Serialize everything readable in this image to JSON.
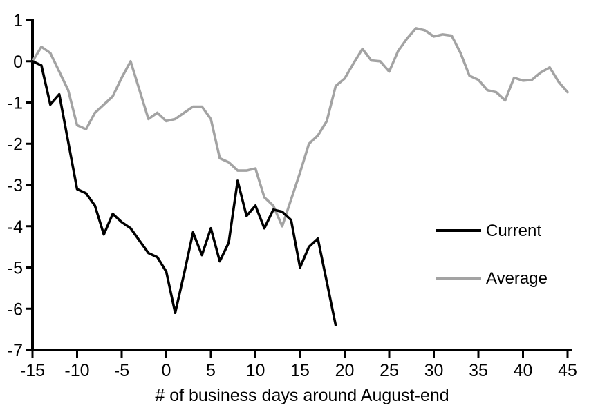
{
  "chart_data": {
    "type": "line",
    "title": "",
    "xlabel": "# of business days around August-end",
    "ylabel": "",
    "xlim": [
      -15,
      45
    ],
    "ylim": [
      -7,
      1
    ],
    "x_ticks": [
      -15,
      -10,
      -5,
      0,
      5,
      10,
      15,
      20,
      25,
      30,
      35,
      40,
      45
    ],
    "y_ticks": [
      1,
      0,
      -1,
      -2,
      -3,
      -4,
      -5,
      -6,
      -7
    ],
    "grid": false,
    "legend_position": "right-middle",
    "series": [
      {
        "name": "Current",
        "color": "#000000",
        "x": [
          -15,
          -14,
          -13,
          -12,
          -11,
          -10,
          -9,
          -8,
          -7,
          -6,
          -5,
          -4,
          -3,
          -2,
          -1,
          0,
          1,
          2,
          3,
          4,
          5,
          6,
          7,
          8,
          9,
          10,
          11,
          12,
          13,
          14,
          15,
          16,
          17,
          18,
          19
        ],
        "values": [
          0,
          -0.1,
          -1.05,
          -0.8,
          -1.95,
          -3.1,
          -3.2,
          -3.5,
          -4.2,
          -3.7,
          -3.9,
          -4.05,
          -4.35,
          -4.65,
          -4.75,
          -5.1,
          -6.1,
          -5.15,
          -4.15,
          -4.7,
          -4.05,
          -4.85,
          -4.4,
          -2.9,
          -3.75,
          -3.5,
          -4.05,
          -3.6,
          -3.65,
          -3.85,
          -5.0,
          -4.5,
          -4.3,
          -5.35,
          -6.4
        ]
      },
      {
        "name": "Average",
        "color": "#a3a3a3",
        "x": [
          -15,
          -14,
          -13,
          -12,
          -11,
          -10,
          -9,
          -8,
          -7,
          -6,
          -5,
          -4,
          -3,
          -2,
          -1,
          0,
          1,
          2,
          3,
          4,
          5,
          6,
          7,
          8,
          9,
          10,
          11,
          12,
          13,
          14,
          15,
          16,
          17,
          18,
          19,
          20,
          21,
          22,
          23,
          24,
          25,
          26,
          27,
          28,
          29,
          30,
          31,
          32,
          33,
          34,
          35,
          36,
          37,
          38,
          39,
          40,
          41,
          42,
          43,
          44,
          45
        ],
        "values": [
          0,
          0.35,
          0.2,
          -0.25,
          -0.7,
          -1.55,
          -1.65,
          -1.25,
          -1.05,
          -0.85,
          -0.4,
          0,
          -0.7,
          -1.4,
          -1.25,
          -1.45,
          -1.4,
          -1.25,
          -1.1,
          -1.1,
          -1.4,
          -2.35,
          -2.45,
          -2.65,
          -2.65,
          -2.6,
          -3.3,
          -3.5,
          -4.0,
          -3.35,
          -2.7,
          -2.0,
          -1.8,
          -1.45,
          -0.6,
          -0.42,
          -0.05,
          0.3,
          0.02,
          0,
          -0.25,
          0.25,
          0.55,
          0.8,
          0.75,
          0.6,
          0.65,
          0.62,
          0.2,
          -0.35,
          -0.45,
          -0.7,
          -0.75,
          -0.95,
          -0.4,
          -0.47,
          -0.45,
          -0.27,
          -0.15,
          -0.5,
          -0.75
        ]
      }
    ]
  },
  "colors": {
    "axis": "#000000",
    "text": "#000000",
    "background": "#ffffff"
  }
}
